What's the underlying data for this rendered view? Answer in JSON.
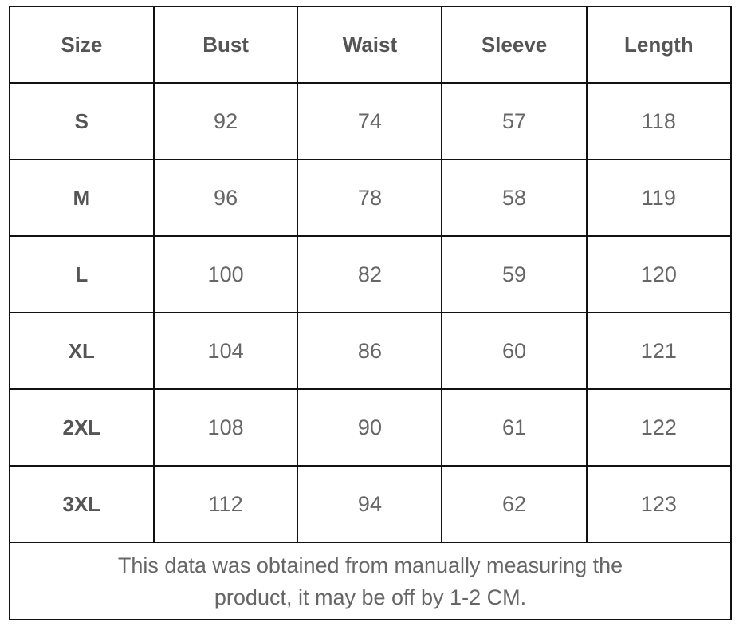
{
  "chart_data": {
    "type": "table",
    "columns": [
      "Size",
      "Bust",
      "Waist",
      "Sleeve",
      "Length"
    ],
    "rows": [
      [
        "S",
        "92",
        "74",
        "57",
        "118"
      ],
      [
        "M",
        "96",
        "78",
        "58",
        "119"
      ],
      [
        "L",
        "100",
        "82",
        "59",
        "120"
      ],
      [
        "XL",
        "104",
        "86",
        "60",
        "121"
      ],
      [
        "2XL",
        "108",
        "90",
        "61",
        "122"
      ],
      [
        "3XL",
        "112",
        "94",
        "62",
        "123"
      ]
    ],
    "note_lines": [
      "This data was obtained from manually measuring the",
      "product, it may be off by 1-2 CM."
    ]
  }
}
